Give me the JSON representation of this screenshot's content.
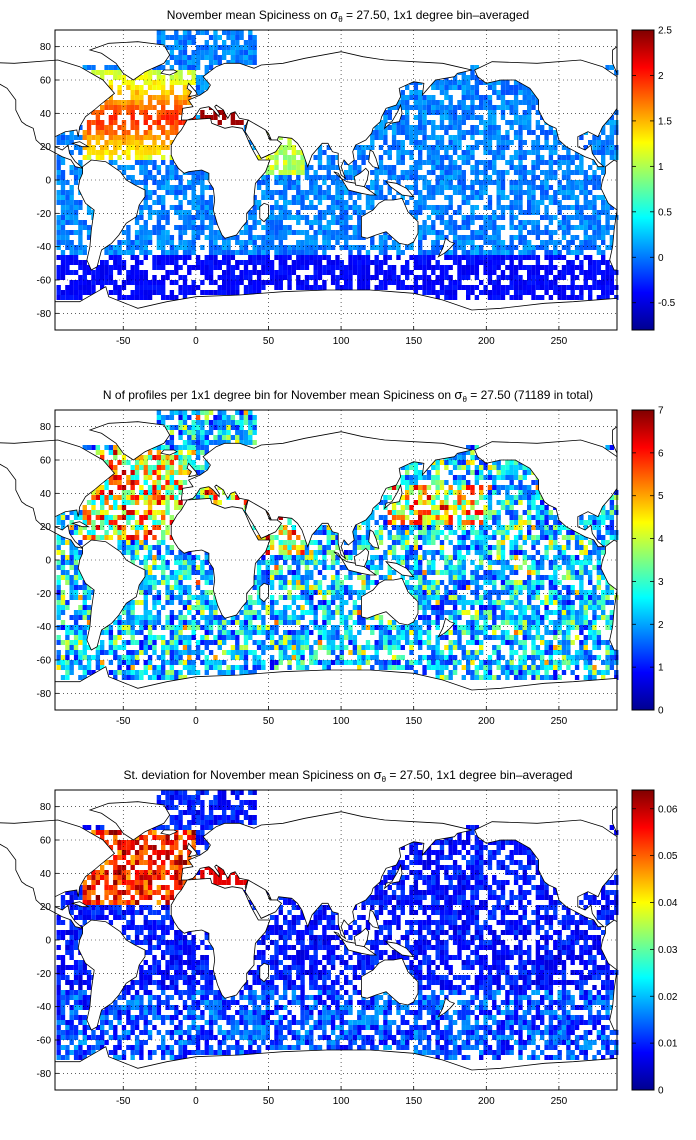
{
  "panels": [
    {
      "id": "spiciness",
      "title_parts": [
        "November mean Spiciness on ",
        "σ",
        "θ",
        " = 27.50, 1x1 degree bin–averaged"
      ],
      "colormap": "jet",
      "colorbar": {
        "min": -0.8,
        "max": 2.5,
        "ticks": [
          "-0.5",
          "0",
          "0.5",
          "1",
          "1.5",
          "2",
          "2.5"
        ],
        "tick_values": [
          -0.5,
          0,
          0.5,
          1,
          1.5,
          2,
          2.5
        ]
      }
    },
    {
      "id": "profile-count",
      "title_parts": [
        "N of profiles per 1x1 degree bin for November mean Spiciness on ",
        "σ",
        "θ",
        " = 27.50 (71189 in total)"
      ],
      "colormap": "jet",
      "colorbar": {
        "min": 0,
        "max": 7,
        "ticks": [
          "0",
          "1",
          "2",
          "3",
          "4",
          "5",
          "6",
          "7"
        ],
        "tick_values": [
          0,
          1,
          2,
          3,
          4,
          5,
          6,
          7
        ]
      }
    },
    {
      "id": "std-deviation",
      "title_parts": [
        "St. deviation for November mean Spiciness on ",
        "σ",
        "θ",
        " = 27.50, 1x1 degree bin–averaged"
      ],
      "colormap": "jet",
      "colorbar": {
        "min": 0,
        "max": 0.064,
        "ticks": [
          "0",
          "0.01",
          "0.02",
          "0.03",
          "0.04",
          "0.05",
          "0.06"
        ],
        "tick_values": [
          0,
          0.01,
          0.02,
          0.03,
          0.04,
          0.05,
          0.06
        ]
      }
    }
  ],
  "map_axes": {
    "x_ticks": [
      "-50",
      "0",
      "50",
      "100",
      "150",
      "200",
      "250"
    ],
    "x_tick_values": [
      -50,
      0,
      50,
      100,
      150,
      200,
      250
    ],
    "y_ticks": [
      "80",
      "60",
      "40",
      "20",
      "0",
      "-20",
      "-40",
      "-60",
      "-80"
    ],
    "y_tick_values": [
      80,
      60,
      40,
      20,
      0,
      -20,
      -40,
      -60,
      -80
    ],
    "xlim": [
      -97,
      290
    ],
    "ylim": [
      -90,
      90
    ],
    "grid": "dotted"
  }
}
